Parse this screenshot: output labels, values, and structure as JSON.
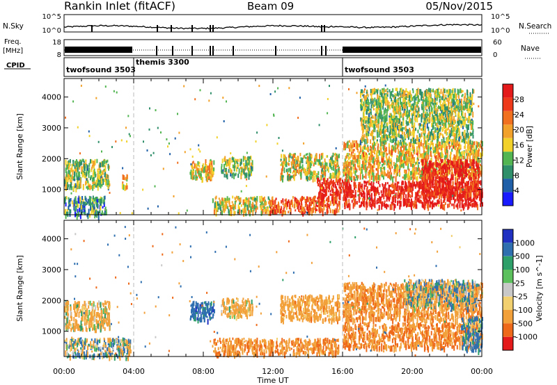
{
  "header": {
    "title": "Rankin Inlet (fitACF)",
    "beam": "Beam 09",
    "date": "05/Nov/2015"
  },
  "small_panels": {
    "noise": {
      "left_label": "N.Sky",
      "right_label": "N.Search",
      "left_ticks": [
        "10^5",
        "10^0"
      ],
      "right_ticks": [
        "10^5",
        "10^0"
      ]
    },
    "freq": {
      "left_label_1": "Freq.",
      "left_label_2": "[MHz]",
      "right_label": "Nave",
      "left_ticks": [
        "18",
        "8"
      ],
      "right_ticks": [
        "60",
        "0"
      ]
    },
    "cpid": {
      "label": "CPID",
      "segments": [
        {
          "name": "twofsound 3503",
          "start_hour": 0
        },
        {
          "name": "themis 3300",
          "start_hour": 4
        },
        {
          "name": "twofsound 3503",
          "start_hour": 16
        }
      ]
    }
  },
  "chart_data": [
    {
      "type": "heatmap",
      "title": "",
      "xlabel": "Time UT",
      "ylabel": "Slant Range [km]",
      "xlim_hours": [
        0,
        24
      ],
      "ylim_km": [
        180,
        4600
      ],
      "y_ticks": [
        "1000",
        "2000",
        "3000",
        "4000"
      ],
      "x_ticks": [
        "00:00",
        "04:00",
        "08:00",
        "12:00",
        "16:00",
        "20:00",
        "00:00"
      ],
      "colorbar": {
        "label": "Power [dB]",
        "ticks": [
          "4",
          "8",
          "12",
          "16",
          "20",
          "24",
          "28"
        ],
        "colors": [
          "#1a1aff",
          "#1f5fa8",
          "#2f8f6a",
          "#52b552",
          "#f2d22a",
          "#f2a22a",
          "#f07020",
          "#ee3a1a",
          "#e41a1a"
        ]
      },
      "echo_regions": [
        {
          "hours": [
            0.0,
            2.6
          ],
          "range_km": [
            1100,
            2000
          ],
          "value": 14
        },
        {
          "hours": [
            0.0,
            2.4
          ],
          "range_km": [
            200,
            800
          ],
          "value": 10
        },
        {
          "hours": [
            3.3,
            3.6
          ],
          "range_km": [
            1100,
            1500
          ],
          "value": 18
        },
        {
          "hours": [
            7.2,
            8.6
          ],
          "range_km": [
            1400,
            2000
          ],
          "value": 18
        },
        {
          "hours": [
            9.0,
            10.8
          ],
          "range_km": [
            1500,
            2100
          ],
          "value": 14
        },
        {
          "hours": [
            8.5,
            12.0
          ],
          "range_km": [
            300,
            800
          ],
          "value": 16
        },
        {
          "hours": [
            11.8,
            15.8
          ],
          "range_km": [
            300,
            800
          ],
          "value": 24
        },
        {
          "hours": [
            12.4,
            15.8
          ],
          "range_km": [
            1400,
            2200
          ],
          "value": 16
        },
        {
          "hours": [
            14.5,
            16.5
          ],
          "range_km": [
            800,
            1400
          ],
          "value": 28
        },
        {
          "hours": [
            16.0,
            24.0
          ],
          "range_km": [
            500,
            1300
          ],
          "value": 28
        },
        {
          "hours": [
            16.0,
            24.0
          ],
          "range_km": [
            1400,
            2600
          ],
          "value": 18
        },
        {
          "hours": [
            20.5,
            23.8
          ],
          "range_km": [
            800,
            2000
          ],
          "value": 28
        },
        {
          "hours": [
            17.0,
            23.5
          ],
          "range_km": [
            2600,
            4300
          ],
          "value": 14
        }
      ]
    },
    {
      "type": "heatmap",
      "title": "",
      "xlabel": "Time UT",
      "ylabel": "Slant Range [km]",
      "xlim_hours": [
        0,
        24
      ],
      "ylim_km": [
        180,
        4600
      ],
      "y_ticks": [
        "1000",
        "2000",
        "3000",
        "4000"
      ],
      "x_ticks": [
        "00:00",
        "04:00",
        "08:00",
        "12:00",
        "16:00",
        "20:00",
        "00:00"
      ],
      "colorbar": {
        "label": "Velocity [m s^-1]",
        "ticks": [
          "1000",
          "500",
          "100",
          "25",
          "-25",
          "-100",
          "-500",
          "-1000"
        ],
        "colors": [
          "#2030c0",
          "#2f6fb0",
          "#2f9f6a",
          "#5cc05c",
          "#c8c8c8",
          "#f2d070",
          "#f2a03a",
          "#ee6a1a",
          "#e41a1a"
        ]
      },
      "echo_regions": [
        {
          "hours": [
            0.0,
            2.6
          ],
          "range_km": [
            1100,
            2000
          ],
          "value": -150
        },
        {
          "hours": [
            0.0,
            3.8
          ],
          "range_km": [
            200,
            800
          ],
          "value": 0
        },
        {
          "hours": [
            7.2,
            8.6
          ],
          "range_km": [
            1400,
            2000
          ],
          "value": 300
        },
        {
          "hours": [
            9.0,
            10.8
          ],
          "range_km": [
            1500,
            2100
          ],
          "value": -200
        },
        {
          "hours": [
            8.5,
            15.8
          ],
          "range_km": [
            300,
            800
          ],
          "value": -400
        },
        {
          "hours": [
            12.4,
            15.8
          ],
          "range_km": [
            1400,
            2200
          ],
          "value": -300
        },
        {
          "hours": [
            16.0,
            24.0
          ],
          "range_km": [
            500,
            1300
          ],
          "value": -500
        },
        {
          "hours": [
            16.0,
            24.0
          ],
          "range_km": [
            1400,
            2600
          ],
          "value": -400
        },
        {
          "hours": [
            19.5,
            23.8
          ],
          "range_km": [
            1800,
            2700
          ],
          "value": 0
        },
        {
          "hours": [
            22.8,
            24.0
          ],
          "range_km": [
            400,
            1500
          ],
          "value": 150
        }
      ]
    }
  ],
  "cpid_boundaries_hours": [
    4,
    16
  ]
}
